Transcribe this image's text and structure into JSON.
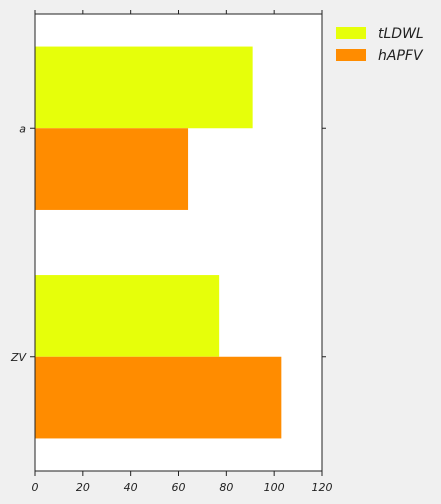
{
  "chart_data": {
    "type": "bar",
    "orientation": "horizontal",
    "categories": [
      "a",
      "ZV"
    ],
    "series": [
      {
        "name": "tLDWL",
        "values": [
          91,
          77
        ],
        "color": "#e6ff0a"
      },
      {
        "name": "hAPFV",
        "values": [
          64,
          103
        ],
        "color": "#ff8c00"
      }
    ],
    "title": "",
    "xlabel": "",
    "ylabel": "",
    "xlim": [
      0,
      120
    ],
    "xticks": [
      0,
      20,
      40,
      60,
      80,
      100,
      120
    ],
    "xtick_labels": [
      "0",
      "20",
      "40",
      "60",
      "80",
      "100",
      "120"
    ],
    "grid": false,
    "legend_position": "outside-top-right"
  }
}
